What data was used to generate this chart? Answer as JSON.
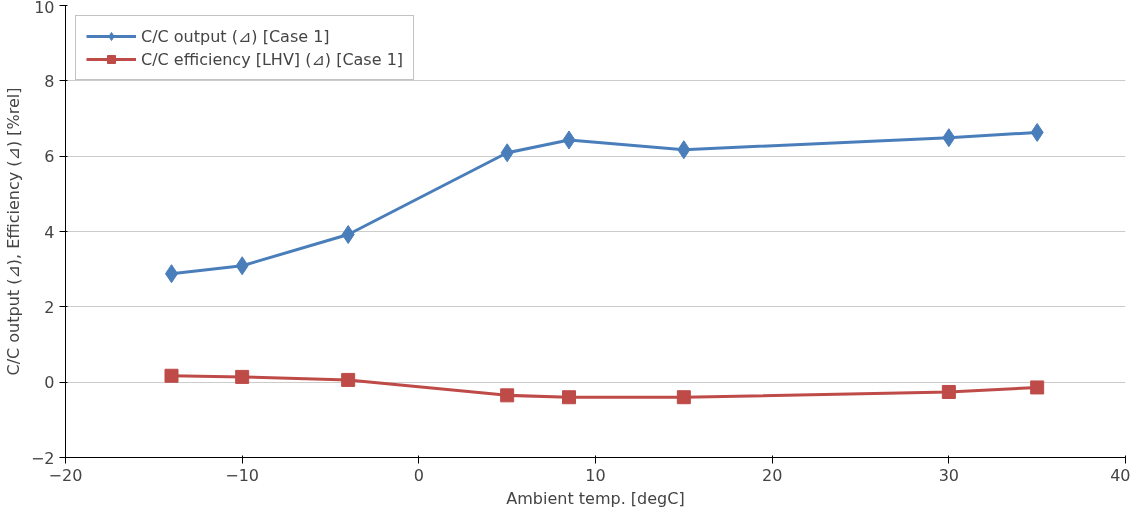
{
  "chart_data": {
    "type": "line",
    "xlabel": "Ambient temp. [degC]",
    "ylabel": "C/C output (⊿), Efficiency (⊿) [%rel]",
    "x": [
      -14,
      -10,
      -4,
      5,
      8.5,
      15,
      30,
      35
    ],
    "series": [
      {
        "name": "C/C output (⊿) [Case 1]",
        "color": "#4a7ebb",
        "marker": "diamond",
        "values": [
          2.88,
          3.09,
          3.92,
          6.09,
          6.43,
          6.17,
          6.49,
          6.63
        ]
      },
      {
        "name": "C/C efficiency [LHV] (⊿) [Case 1]",
        "color": "#be4b48",
        "marker": "square",
        "values": [
          0.17,
          0.14,
          0.06,
          -0.35,
          -0.4,
          -0.4,
          -0.26,
          -0.14
        ]
      }
    ],
    "xlim": [
      -20,
      40
    ],
    "xticks": [
      -20,
      -10,
      0,
      10,
      20,
      30,
      40
    ],
    "ylim": [
      -2,
      10
    ],
    "yticks": [
      -2,
      0,
      2,
      4,
      6,
      8,
      10
    ],
    "grid": "y",
    "legend": "top left",
    "line_style": "solid"
  }
}
